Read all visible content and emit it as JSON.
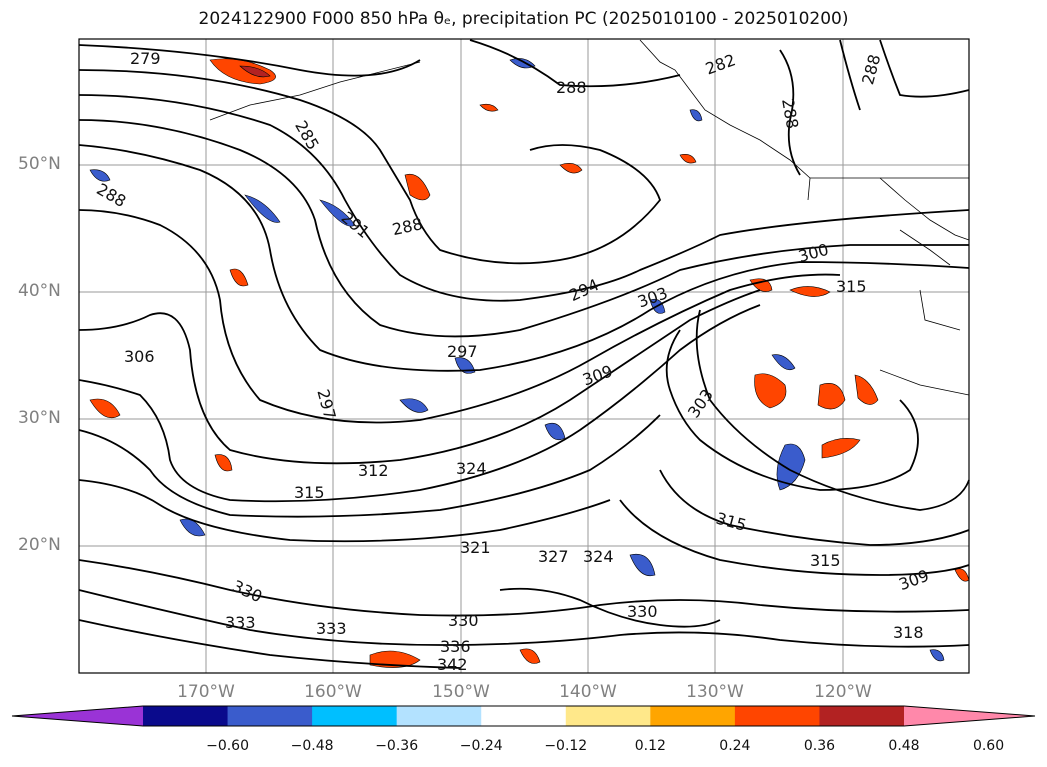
{
  "title": "2024122900 F000 850 hPa θₑ, precipitation PC (2025010100 - 2025010200)",
  "map": {
    "lat_labels": [
      "50°N",
      "40°N",
      "30°N",
      "20°N"
    ],
    "lon_labels": [
      "170°W",
      "160°W",
      "150°W",
      "140°W",
      "130°W",
      "120°W"
    ],
    "contour_labels": [
      "279",
      "285",
      "288",
      "288",
      "288",
      "291",
      "294",
      "297",
      "297",
      "300",
      "303",
      "303",
      "306",
      "309",
      "312",
      "315",
      "315",
      "315",
      "318",
      "321",
      "324",
      "324",
      "327",
      "330",
      "330",
      "330",
      "333",
      "333",
      "315",
      "309",
      "282",
      "288",
      "288",
      "342",
      "336"
    ]
  },
  "colorbar": {
    "ticks": [
      "−0.60",
      "−0.48",
      "−0.36",
      "−0.24",
      "−0.12",
      "0.12",
      "0.24",
      "0.36",
      "0.48",
      "0.60"
    ],
    "colors": [
      "#9a33d6",
      "#0a0a8c",
      "#3a5ccc",
      "#00bfff",
      "#b3e2ff",
      "#ffffff",
      "#ffe88a",
      "#ffa500",
      "#ff4500",
      "#b22222",
      "#ff88aa"
    ]
  }
}
